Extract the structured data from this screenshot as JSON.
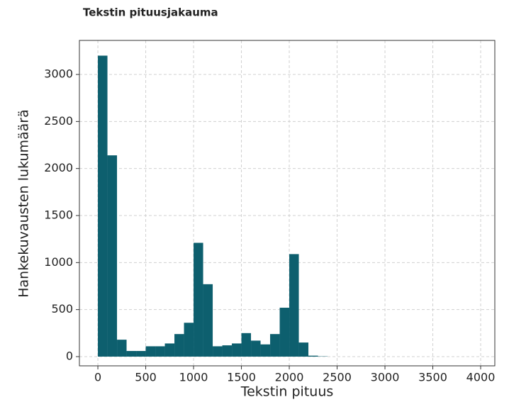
{
  "chart_data": {
    "type": "histogram",
    "title": "Tekstin pituusjakauma",
    "xlabel": "Tekstin pituus",
    "ylabel": "Hankekuvausten lukumäärä",
    "bins": [
      0,
      100,
      200,
      300,
      400,
      500,
      600,
      700,
      800,
      900,
      1000,
      1100,
      1200,
      1300,
      1400,
      1500,
      1600,
      1700,
      1800,
      1900,
      2000,
      2100,
      2200,
      2300,
      2400,
      2500,
      2600,
      2700,
      2800,
      2900,
      3000,
      3100,
      3200,
      3300,
      3400,
      3500,
      3600,
      3700,
      3800,
      3900,
      4000
    ],
    "values": [
      3200,
      2140,
      180,
      60,
      60,
      110,
      110,
      140,
      240,
      360,
      1210,
      770,
      110,
      120,
      140,
      250,
      170,
      130,
      240,
      520,
      1090,
      150,
      10,
      3,
      0,
      0,
      0,
      0,
      0,
      0,
      0,
      0,
      0,
      0,
      0,
      0,
      0,
      0,
      0,
      0
    ],
    "color": "#0d5f6e",
    "xlim": [
      -193,
      4148
    ],
    "xticks": [
      0,
      500,
      1000,
      1500,
      2000,
      2500,
      3000,
      3500,
      4000
    ],
    "ylim": [
      -98,
      3362
    ],
    "yticks": [
      0,
      500,
      1000,
      1500,
      2000,
      2500,
      3000
    ],
    "grid": true
  }
}
